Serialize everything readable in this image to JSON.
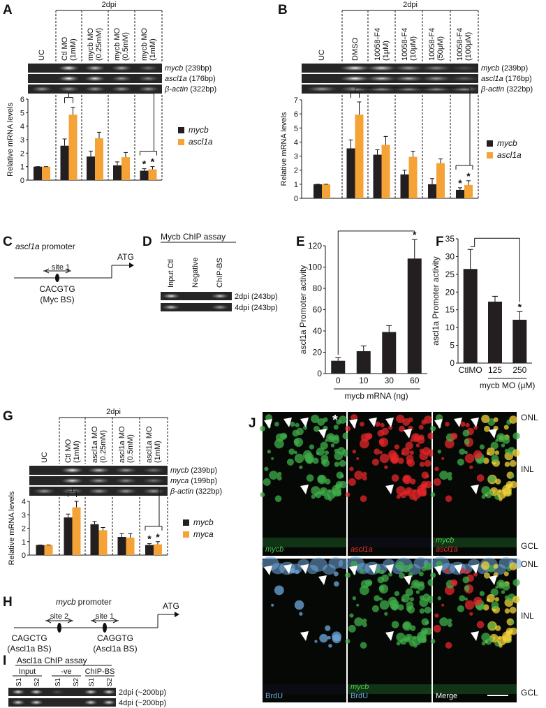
{
  "chart_data": [
    {
      "type": "grouped-bar",
      "header": "2dpi",
      "ylabel": "Relative mRNA levels",
      "categories": [
        "UC",
        "Ctl MO (1mM)",
        "mycb MO (0.25mM)",
        "mycb MO (0.5mM)",
        "mycb MO (1mM)"
      ],
      "gel_rows": [
        {
          "gene": "mycb",
          "size": "(239bp)"
        },
        {
          "gene": "ascl1a",
          "size": "(176bp)"
        },
        {
          "gene": "β-actin",
          "size": "(322bp)"
        }
      ],
      "series": [
        {
          "name": "mycb",
          "color": "#231f20",
          "values": [
            1,
            2.55,
            1.75,
            1.1,
            0.7
          ],
          "errors": [
            0,
            0.5,
            0.4,
            0.25,
            0.15
          ]
        },
        {
          "name": "ascl1a",
          "color": "#f5a236",
          "values": [
            1,
            4.85,
            3.1,
            1.7,
            0.8
          ],
          "errors": [
            0,
            0.55,
            0.45,
            0.35,
            0.2
          ]
        }
      ],
      "ylim": [
        0,
        6
      ],
      "yticks": [
        0,
        1,
        2,
        3,
        4,
        5,
        6
      ],
      "annotations": [
        "*",
        "*"
      ]
    },
    {
      "type": "grouped-bar",
      "header": "2dpi",
      "ylabel": "Relative mRNA levels",
      "categories": [
        "UC",
        "DMSO",
        "10058-F4 (1μM)",
        "10058-F4 (10μM)",
        "10058-F4 (50μM)",
        "10058-F4 (100μM)"
      ],
      "gel_rows": [
        {
          "gene": "mycb",
          "size": "(239bp)"
        },
        {
          "gene": "ascl1a",
          "size": "(176bp)"
        },
        {
          "gene": "β-actin",
          "size": "(322bp)"
        }
      ],
      "series": [
        {
          "name": "mycb",
          "color": "#231f20",
          "values": [
            1,
            3.55,
            3.1,
            1.7,
            1.0,
            0.6
          ],
          "errors": [
            0,
            0.6,
            0.35,
            0.3,
            0.4,
            0.15
          ]
        },
        {
          "name": "ascl1a",
          "color": "#f5a236",
          "values": [
            1,
            5.95,
            3.8,
            2.95,
            2.5,
            0.95
          ],
          "errors": [
            0,
            0.9,
            0.6,
            0.4,
            0.3,
            0.3
          ]
        }
      ],
      "ylim": [
        0,
        7
      ],
      "yticks": [
        0,
        1,
        2,
        3,
        4,
        5,
        6,
        7
      ],
      "annotations": [
        "*",
        "*"
      ]
    },
    {
      "type": "bar",
      "ylabel": "ascl1a Promoter activity",
      "xlabel": "mycb mRNA (ng)",
      "color": "#231f20",
      "categories": [
        "0",
        "10",
        "30",
        "60"
      ],
      "values": [
        12,
        21,
        39,
        108
      ],
      "errors": [
        3,
        5,
        6,
        18
      ],
      "ylim": [
        0,
        120
      ],
      "yticks": [
        0,
        20,
        40,
        60,
        80,
        100,
        120
      ],
      "annotations": [
        "*"
      ]
    },
    {
      "type": "bar",
      "ylabel": "ascl1a Promoter activity",
      "xlabel": "mycb MO (μM)",
      "color": "#231f20",
      "categories": [
        "CtlMO",
        "125",
        "250"
      ],
      "values": [
        26.5,
        17.3,
        12.2
      ],
      "errors": [
        5.5,
        1.5,
        2.3
      ],
      "ylim": [
        0,
        35
      ],
      "yticks": [
        0,
        5,
        10,
        15,
        20,
        25,
        30,
        35
      ],
      "annotations": [
        "*"
      ]
    },
    {
      "type": "grouped-bar",
      "header": "2dpi",
      "ylabel": "Relative mRNA levels",
      "categories": [
        "UC",
        "Ctl MO (1mM)",
        "ascl1a MO (0.25mM)",
        "ascl1a MO (0.5mM)",
        "ascl1a MO (1mM)"
      ],
      "gel_rows": [
        {
          "gene": "mycb",
          "size": "(239bp)"
        },
        {
          "gene": "myca",
          "size": "(199bp)"
        },
        {
          "gene": "β-actin",
          "size": "(322bp)"
        }
      ],
      "series": [
        {
          "name": "mycb",
          "color": "#231f20",
          "values": [
            0.75,
            2.8,
            2.3,
            1.35,
            0.75
          ],
          "errors": [
            0,
            0.25,
            0.2,
            0.25,
            0.1
          ]
        },
        {
          "name": "myca",
          "color": "#f5a236",
          "values": [
            0.75,
            3.55,
            1.85,
            1.3,
            0.8
          ],
          "errors": [
            0,
            0.45,
            0.2,
            0.3,
            0.2
          ]
        }
      ],
      "ylim": [
        0,
        4
      ],
      "yticks": [
        0,
        1,
        2,
        3,
        4
      ],
      "annotations": [
        "*",
        "*"
      ]
    }
  ],
  "letters": [
    "A",
    "B",
    "C",
    "D",
    "E",
    "F",
    "G",
    "H",
    "I",
    "J"
  ],
  "panel_c": {
    "gene": "ascl1a",
    "title": "promoter",
    "site": "site 1",
    "motif": "CACGTG",
    "bs": "(Myc BS)",
    "start": "ATG"
  },
  "panel_d": {
    "title": "Mycb ChIP assay",
    "lanes": [
      "Input Ctl",
      "Negative",
      "ChIP-BS"
    ],
    "rows": [
      "2dpi (243bp)",
      "4dpi (243bp)"
    ]
  },
  "panel_h": {
    "gene": "mycb",
    "title": "promoter",
    "start": "ATG",
    "sites": [
      {
        "name": "site 2",
        "motif": "CAGCTG",
        "bs": "(Ascl1a BS)"
      },
      {
        "name": "site 1",
        "motif": "CAGGTG",
        "bs": "(Ascl1a BS)"
      }
    ]
  },
  "panel_i": {
    "title": "Ascl1a ChIP assay",
    "groups": [
      "Input",
      "-ve",
      "ChIP-BS"
    ],
    "lanes": [
      "S1",
      "S2",
      "S1",
      "S2",
      "S1",
      "S2"
    ],
    "rows": [
      "2dpi (~200bp)",
      "4dpi (~200bp)"
    ]
  },
  "panel_j": {
    "layers": [
      "ONL",
      "INL",
      "GCL"
    ],
    "star": "*",
    "images": [
      [
        "mycb"
      ],
      [
        "ascl1a"
      ],
      [
        "mycb",
        "ascl1a"
      ],
      [
        "BrdU"
      ],
      [
        "mycb",
        "BrdU"
      ],
      [
        "Merge"
      ]
    ]
  }
}
